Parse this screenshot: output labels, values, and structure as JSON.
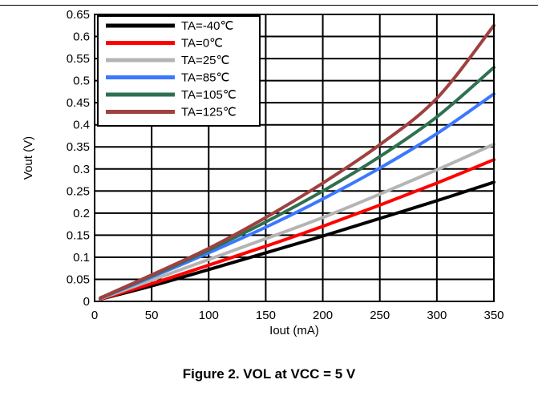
{
  "caption": "Figure 2. VOL at VCC = 5 V",
  "chart_data": {
    "type": "line",
    "xlabel": "Iout (mA)",
    "ylabel": "Vout (V)",
    "xlim": [
      0,
      350
    ],
    "ylim": [
      0,
      0.65
    ],
    "xticks": [
      0,
      50,
      100,
      150,
      200,
      250,
      300,
      350
    ],
    "yticks": [
      0,
      0.05,
      0.1,
      0.15,
      0.2,
      0.25,
      0.3,
      0.35,
      0.4,
      0.45,
      0.5,
      0.55,
      0.6,
      0.65
    ],
    "grid": true,
    "legend_position": "top-left",
    "x": [
      5,
      50,
      100,
      150,
      200,
      250,
      300,
      350
    ],
    "series": [
      {
        "name": "TA=-40℃",
        "color": "#000000",
        "values": [
          0.005,
          0.035,
          0.072,
          0.11,
          0.148,
          0.188,
          0.228,
          0.27
        ]
      },
      {
        "name": "TA=0℃",
        "color": "#ff0000",
        "values": [
          0.005,
          0.04,
          0.082,
          0.125,
          0.17,
          0.218,
          0.268,
          0.321
        ]
      },
      {
        "name": "TA=25℃",
        "color": "#b4b4b4",
        "values": [
          0.006,
          0.048,
          0.095,
          0.142,
          0.19,
          0.243,
          0.298,
          0.356
        ]
      },
      {
        "name": "TA=85℃",
        "color": "#3c78ff",
        "values": [
          0.007,
          0.055,
          0.11,
          0.168,
          0.232,
          0.302,
          0.38,
          0.47
        ]
      },
      {
        "name": "TA=105℃",
        "color": "#2e7050",
        "values": [
          0.007,
          0.058,
          0.116,
          0.18,
          0.25,
          0.328,
          0.418,
          0.53
        ]
      },
      {
        "name": "TA=125℃",
        "color": "#a04040",
        "values": [
          0.008,
          0.06,
          0.12,
          0.19,
          0.268,
          0.355,
          0.46,
          0.625
        ]
      }
    ]
  }
}
